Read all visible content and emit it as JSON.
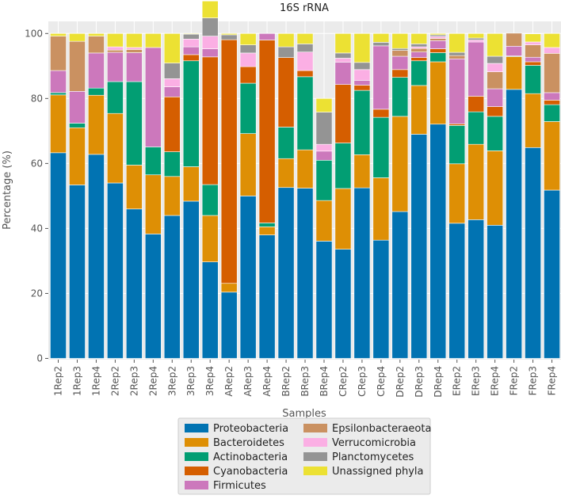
{
  "chart_data": {
    "type": "stacked-bar",
    "title": "16S rRNA",
    "xlabel": "Samples",
    "ylabel": "Percentage (%)",
    "ylim": [
      0,
      100
    ],
    "yticks": [
      0,
      20,
      40,
      60,
      80,
      100
    ],
    "grid": true,
    "legend_position": "bottom-center",
    "categories": [
      "1Rep2",
      "1Rep3",
      "1Rep4",
      "2Rep2",
      "2Rep3",
      "2Rep4",
      "3Rep2",
      "3Rep3",
      "3Rep4",
      "ARep2",
      "ARep3",
      "ARep4",
      "BRep2",
      "BRep3",
      "BRep4",
      "CRep2",
      "CRep3",
      "CRep4",
      "DRep2",
      "DRep3",
      "DRep4",
      "ERep2",
      "ERep3",
      "ERep4",
      "FRep2",
      "FRep3",
      "FRep4"
    ],
    "series": [
      {
        "name": "Proteobacteria",
        "color": "#0173b2",
        "values": [
          63.3,
          53.4,
          62.8,
          54.0,
          46.0,
          38.3,
          44.0,
          48.4,
          29.7,
          20.4,
          50.0,
          38.0,
          52.6,
          52.4,
          36.1,
          33.6,
          52.5,
          36.4,
          45.2,
          69.0,
          72.1,
          41.6,
          42.7,
          41.0,
          82.8,
          64.9,
          51.8
        ]
      },
      {
        "name": "Bacteroidetes",
        "color": "#de8f05",
        "values": [
          17.8,
          17.6,
          18.2,
          21.4,
          13.5,
          18.2,
          12.0,
          10.6,
          14.3,
          2.7,
          19.2,
          2.5,
          8.9,
          11.8,
          12.5,
          18.7,
          10.2,
          19.2,
          29.3,
          15.0,
          19.2,
          18.3,
          23.2,
          22.9,
          10.1,
          16.6,
          21.1
        ]
      },
      {
        "name": "Actinobacteria",
        "color": "#029e73",
        "values": [
          0.7,
          1.4,
          2.2,
          9.8,
          25.7,
          8.6,
          7.6,
          32.6,
          9.5,
          0,
          15.5,
          1.2,
          9.7,
          22.5,
          12.4,
          14.0,
          19.8,
          18.6,
          12.0,
          7.6,
          2.8,
          11.8,
          10.0,
          10.6,
          0.2,
          8.7,
          5.2
        ]
      },
      {
        "name": "Cyanobacteria",
        "color": "#d55e00",
        "values": [
          0,
          0,
          0,
          0,
          0,
          0,
          16.9,
          1.9,
          39.3,
          75.0,
          5.1,
          56.3,
          21.4,
          1.9,
          0,
          18.0,
          1.6,
          2.5,
          2.4,
          1.0,
          1.2,
          0.5,
          4.8,
          3.0,
          0,
          1.1,
          1.4
        ]
      },
      {
        "name": "Firmicutes",
        "color": "#cc78bc",
        "values": [
          6.8,
          9.8,
          10.8,
          9.0,
          8.9,
          30.6,
          3.1,
          2.4,
          2.5,
          0,
          0,
          2.0,
          0,
          0,
          2.8,
          6.9,
          1.5,
          19.5,
          4.1,
          1.7,
          2.5,
          20.0,
          16.7,
          5.5,
          3.0,
          1.4,
          2.3
        ]
      },
      {
        "name": "Epsilonbacteraeota",
        "color": "#ca9161",
        "values": [
          10.6,
          15.4,
          5.2,
          0.7,
          1.0,
          0,
          0,
          0,
          0,
          0,
          0,
          0,
          0,
          0,
          0,
          0,
          0,
          0,
          1.8,
          1.1,
          0.7,
          1.0,
          0,
          5.2,
          4.0,
          3.8,
          12.1
        ]
      },
      {
        "name": "Verrucomicrobia",
        "color": "#fbafe4",
        "values": [
          0,
          0,
          0,
          1.0,
          0.6,
          0,
          2.5,
          2.4,
          3.9,
          0,
          4.2,
          0,
          0,
          5.7,
          2.1,
          1.2,
          3.3,
          0,
          0,
          0.5,
          0.6,
          0,
          0.6,
          2.6,
          0,
          0.9,
          1.8
        ]
      },
      {
        "name": "Planctomycetes",
        "color": "#949494",
        "values": [
          0,
          0,
          0,
          0,
          0,
          0,
          4.8,
          1.5,
          5.6,
          1.5,
          2.5,
          0,
          3.3,
          2.5,
          9.9,
          1.6,
          2.2,
          1.1,
          0.6,
          0.9,
          0.5,
          1.0,
          0.6,
          2.2,
          0,
          0,
          0
        ]
      },
      {
        "name": "Unassigned phyla",
        "color": "#ece133",
        "values": [
          0.8,
          2.4,
          0.8,
          4.1,
          4.3,
          4.3,
          9.1,
          0.2,
          5.2,
          0.4,
          3.5,
          0,
          4.1,
          3.2,
          4.2,
          6.0,
          8.9,
          2.7,
          4.6,
          3.2,
          0.4,
          5.8,
          1.4,
          7.0,
          0,
          2.5,
          4.3
        ]
      }
    ]
  }
}
